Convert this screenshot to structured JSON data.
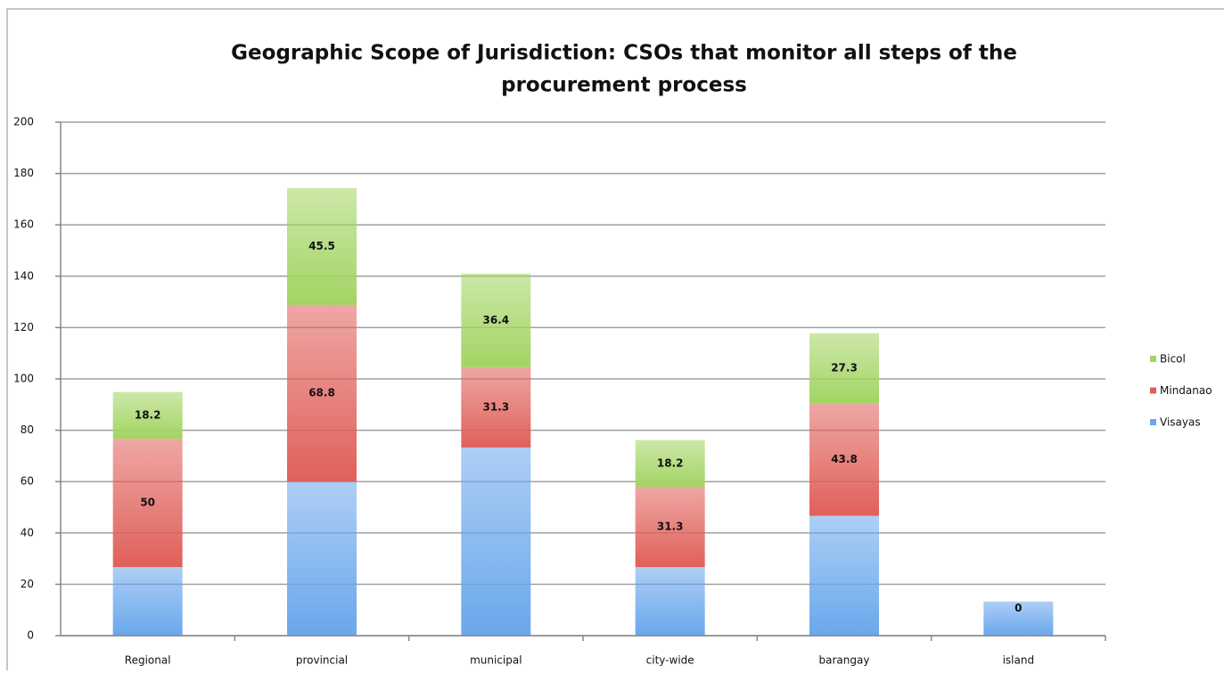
{
  "chart_data": {
    "type": "stacked_bar",
    "title": [
      "Geographic Scope of Jurisdiction:  CSOs that monitor all steps of the",
      "procurement process"
    ],
    "categories": [
      "Regional",
      "provincial",
      "municipal",
      "city-wide",
      "barangay",
      "island"
    ],
    "series": [
      {
        "name": "Visayas",
        "color": "#6aa7ec",
        "values": [
          26.7,
          60,
          73.3,
          26.7,
          46.7,
          13.3
        ]
      },
      {
        "name": "Mindanao",
        "color": "#e0605a",
        "values": [
          50,
          68.8,
          31.3,
          31.3,
          43.8,
          0
        ],
        "value_labels": [
          "50",
          "68.8",
          "31.3",
          "31.3",
          "43.8",
          null
        ]
      },
      {
        "name": "Bicol",
        "color": "#a3d463",
        "values": [
          18.2,
          45.5,
          36.4,
          18.2,
          27.3,
          0
        ],
        "value_labels": [
          "18.2",
          "45.5",
          "36.4",
          "18.2",
          "27.3",
          "0"
        ]
      }
    ],
    "ylim": [
      0,
      200
    ],
    "yticks": [
      0,
      20,
      40,
      60,
      80,
      100,
      120,
      140,
      160,
      180,
      200
    ],
    "grid": true,
    "legend": "right"
  }
}
